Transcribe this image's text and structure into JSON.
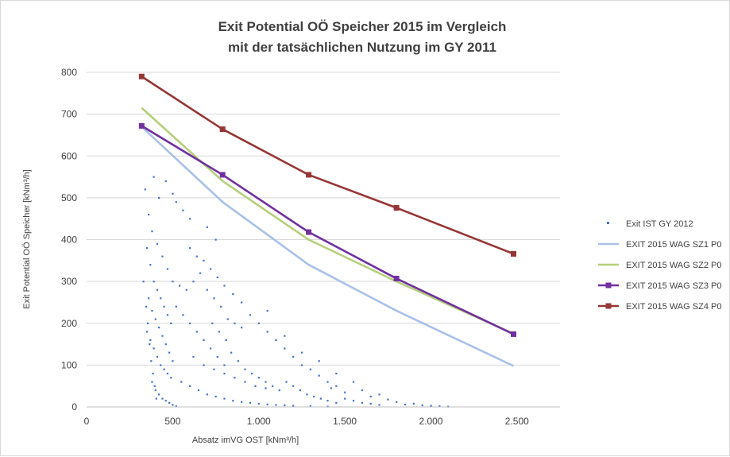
{
  "chart_data": {
    "type": "scatter",
    "title_lines": [
      "Exit Potential OÖ Speicher 2015 im Vergleich",
      "mit der tatsächlichen Nutzung im GY 2011"
    ],
    "xlabel": "Absatz imVG OST [kNm³/h]",
    "ylabel": "Exit Potential OÖ Speicher [kNm³/h]",
    "xlim": [
      0,
      2750
    ],
    "ylim": [
      0,
      800
    ],
    "x_ticks": [
      0,
      500,
      1000,
      1500,
      2000,
      2500
    ],
    "x_tick_labels": [
      "0",
      "500",
      "1.000",
      "1.500",
      "2.000",
      "2.500"
    ],
    "y_ticks": [
      0,
      100,
      200,
      300,
      400,
      500,
      600,
      700,
      800
    ],
    "y_tick_labels": [
      "0",
      "100",
      "200",
      "300",
      "400",
      "500",
      "600",
      "700",
      "800"
    ],
    "grid": "horizontal",
    "legend_position": "right",
    "scatter_series": {
      "name": "Exit IST GY 2012",
      "color": "#4472c4",
      "points": [
        [
          340,
          520
        ],
        [
          390,
          550
        ],
        [
          420,
          500
        ],
        [
          460,
          540
        ],
        [
          500,
          510
        ],
        [
          520,
          490
        ],
        [
          560,
          470
        ],
        [
          600,
          450
        ],
        [
          360,
          460
        ],
        [
          380,
          420
        ],
        [
          410,
          390
        ],
        [
          440,
          360
        ],
        [
          470,
          330
        ],
        [
          500,
          300
        ],
        [
          540,
          290
        ],
        [
          580,
          280
        ],
        [
          620,
          300
        ],
        [
          660,
          320
        ],
        [
          700,
          280
        ],
        [
          740,
          260
        ],
        [
          780,
          240
        ],
        [
          820,
          210
        ],
        [
          860,
          200
        ],
        [
          900,
          190
        ],
        [
          350,
          380
        ],
        [
          370,
          340
        ],
        [
          390,
          300
        ],
        [
          410,
          280
        ],
        [
          430,
          260
        ],
        [
          450,
          240
        ],
        [
          470,
          220
        ],
        [
          490,
          200
        ],
        [
          360,
          260
        ],
        [
          380,
          230
        ],
        [
          400,
          210
        ],
        [
          420,
          190
        ],
        [
          440,
          170
        ],
        [
          460,
          150
        ],
        [
          480,
          130
        ],
        [
          500,
          110
        ],
        [
          520,
          240
        ],
        [
          560,
          220
        ],
        [
          600,
          200
        ],
        [
          640,
          180
        ],
        [
          680,
          160
        ],
        [
          720,
          140
        ],
        [
          760,
          120
        ],
        [
          800,
          100
        ],
        [
          840,
          130
        ],
        [
          880,
          110
        ],
        [
          920,
          90
        ],
        [
          960,
          80
        ],
        [
          1000,
          70
        ],
        [
          1040,
          60
        ],
        [
          1080,
          50
        ],
        [
          1120,
          40
        ],
        [
          1160,
          60
        ],
        [
          1200,
          50
        ],
        [
          1240,
          40
        ],
        [
          1280,
          30
        ],
        [
          1320,
          25
        ],
        [
          1360,
          20
        ],
        [
          1400,
          15
        ],
        [
          1450,
          10
        ],
        [
          1500,
          20
        ],
        [
          1550,
          15
        ],
        [
          1600,
          10
        ],
        [
          1650,
          8
        ],
        [
          1700,
          5
        ],
        [
          1800,
          12
        ],
        [
          1900,
          8
        ],
        [
          2000,
          3
        ],
        [
          350,
          180
        ],
        [
          370,
          160
        ],
        [
          390,
          140
        ],
        [
          410,
          120
        ],
        [
          430,
          100
        ],
        [
          450,
          90
        ],
        [
          470,
          80
        ],
        [
          490,
          70
        ],
        [
          550,
          60
        ],
        [
          600,
          50
        ],
        [
          650,
          40
        ],
        [
          700,
          30
        ],
        [
          750,
          25
        ],
        [
          800,
          20
        ],
        [
          850,
          15
        ],
        [
          900,
          12
        ],
        [
          950,
          10
        ],
        [
          1000,
          8
        ],
        [
          1050,
          6
        ],
        [
          1100,
          5
        ],
        [
          1150,
          4
        ],
        [
          1200,
          3
        ],
        [
          1300,
          2
        ],
        [
          1400,
          1
        ],
        [
          380,
          60
        ],
        [
          400,
          40
        ],
        [
          420,
          30
        ],
        [
          440,
          20
        ],
        [
          460,
          15
        ],
        [
          480,
          10
        ],
        [
          500,
          5
        ],
        [
          520,
          2
        ],
        [
          600,
          380
        ],
        [
          640,
          360
        ],
        [
          680,
          350
        ],
        [
          720,
          330
        ],
        [
          760,
          310
        ],
        [
          800,
          290
        ],
        [
          700,
          430
        ],
        [
          750,
          400
        ],
        [
          620,
          120
        ],
        [
          680,
          100
        ],
        [
          740,
          90
        ],
        [
          800,
          80
        ],
        [
          860,
          70
        ],
        [
          920,
          60
        ],
        [
          980,
          50
        ],
        [
          1040,
          45
        ],
        [
          1100,
          160
        ],
        [
          1150,
          140
        ],
        [
          1200,
          120
        ],
        [
          1250,
          100
        ],
        [
          1300,
          90
        ],
        [
          1350,
          75
        ],
        [
          1400,
          60
        ],
        [
          1450,
          50
        ],
        [
          1000,
          200
        ],
        [
          1050,
          180
        ],
        [
          950,
          220
        ],
        [
          900,
          250
        ],
        [
          850,
          270
        ],
        [
          810,
          160
        ],
        [
          770,
          180
        ],
        [
          730,
          200
        ],
        [
          330,
          300
        ],
        [
          345,
          240
        ],
        [
          355,
          200
        ],
        [
          365,
          150
        ],
        [
          375,
          110
        ],
        [
          385,
          80
        ],
        [
          395,
          50
        ],
        [
          405,
          20
        ],
        [
          1600,
          40
        ],
        [
          1700,
          30
        ],
        [
          1550,
          60
        ],
        [
          1450,
          80
        ],
        [
          1350,
          110
        ],
        [
          1250,
          130
        ],
        [
          1150,
          170
        ],
        [
          1050,
          230
        ],
        [
          2050,
          2
        ],
        [
          2100,
          1
        ],
        [
          1950,
          4
        ],
        [
          1850,
          6
        ],
        [
          1750,
          18
        ],
        [
          1650,
          25
        ],
        [
          1500,
          35
        ],
        [
          1420,
          45
        ]
      ]
    },
    "series": [
      {
        "name": "EXIT 2015 WAG SZ1 P0",
        "color": "#a9c1e8",
        "marker": "none",
        "x": [
          320,
          790,
          1290,
          1800,
          2480
        ],
        "y": [
          670,
          490,
          340,
          230,
          98
        ]
      },
      {
        "name": "EXIT 2015 WAG SZ2 P0",
        "color": "#b5cf7a",
        "marker": "none",
        "x": [
          320,
          790,
          1290,
          1800,
          2480
        ],
        "y": [
          715,
          540,
          400,
          300,
          175
        ]
      },
      {
        "name": "EXIT 2015 WAG SZ3 P0",
        "color": "#7030a0",
        "marker": "square",
        "x": [
          320,
          790,
          1290,
          1800,
          2480
        ],
        "y": [
          672,
          555,
          418,
          307,
          174
        ]
      },
      {
        "name": "EXIT 2015 WAG SZ4 P0",
        "color": "#963634",
        "marker": "square",
        "x": [
          320,
          790,
          1290,
          1800,
          2480
        ],
        "y": [
          790,
          664,
          555,
          476,
          366
        ]
      }
    ]
  }
}
